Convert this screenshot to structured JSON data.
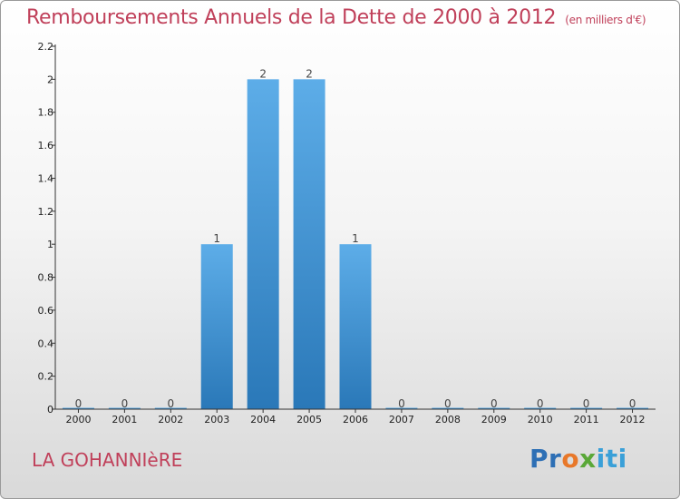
{
  "title": {
    "main": "Remboursements Annuels de la Dette de 2000 à 2012",
    "unit": "(en milliers d'€)"
  },
  "footer": {
    "place": "LA GOHANNIèRE",
    "brand": "Proxiti"
  },
  "colors": {
    "title": "#c0405a",
    "bar_top": "#5dade8",
    "bar_bottom": "#2a78b8",
    "axis": "#333333"
  },
  "chart_data": {
    "type": "bar",
    "title": "Remboursements Annuels de la Dette de 2000 à 2012",
    "categories": [
      "2000",
      "2001",
      "2002",
      "2003",
      "2004",
      "2005",
      "2006",
      "2007",
      "2008",
      "2009",
      "2010",
      "2011",
      "2012"
    ],
    "values": [
      0,
      0,
      0,
      1,
      2,
      2,
      1,
      0,
      0,
      0,
      0,
      0,
      0
    ],
    "data_labels": [
      "0",
      "0",
      "0",
      "1",
      "2",
      "2",
      "1",
      "0",
      "0",
      "0",
      "0",
      "0",
      "0"
    ],
    "ylim": [
      0,
      2.2
    ],
    "yticks": [
      0,
      0.2,
      0.4,
      0.6,
      0.8,
      1,
      1.2,
      1.4,
      1.6,
      1.8,
      2,
      2.2
    ],
    "ytick_labels": [
      "0",
      "0.2",
      "0.4",
      "0.6",
      "0.8",
      "1",
      "1.2",
      "1.4",
      "1.6",
      "1.8",
      "2",
      "2.2"
    ],
    "xlabel": "",
    "ylabel": "",
    "grid": false,
    "legend": "none"
  }
}
